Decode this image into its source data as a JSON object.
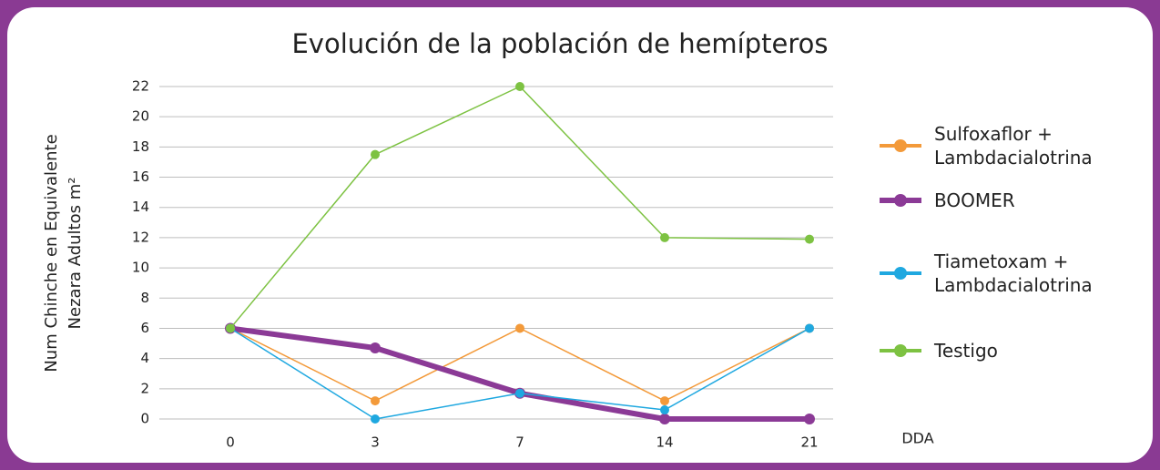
{
  "chart_data": {
    "type": "line",
    "title": "Evolución de la población de hemípteros",
    "y_label": "Num Chinche en Equivalente\nNezara Adultos m²",
    "x_label": "DDA",
    "categories": [
      "0",
      "3",
      "7",
      "14",
      "21"
    ],
    "series": [
      {
        "name": "Sulfoxaflor + Lambdacialotrina",
        "color": "#f39a3a",
        "values": [
          6,
          1.2,
          6,
          1.2,
          6
        ]
      },
      {
        "name": "BOOMER",
        "color": "#8b3a96",
        "values": [
          6,
          4.7,
          1.7,
          0,
          0
        ]
      },
      {
        "name": "Tiametoxam + Lambdacialotrina",
        "color": "#1fa8e0",
        "values": [
          6,
          0,
          1.7,
          0.6,
          6
        ]
      },
      {
        "name": "Testigo",
        "color": "#7dc242",
        "values": [
          6,
          17.5,
          22,
          12,
          11.9
        ]
      }
    ],
    "ylim": [
      0,
      22
    ],
    "yticks": [
      0,
      2,
      4,
      6,
      8,
      10,
      12,
      14,
      16,
      18,
      20,
      22
    ],
    "grid": true,
    "legend": "right"
  }
}
